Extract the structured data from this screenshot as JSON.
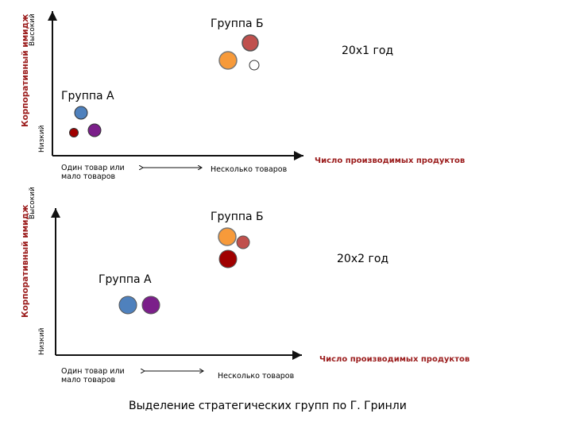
{
  "caption": "Выделение стратегических групп по Г. Гринли",
  "colors": {
    "axis": "#111111",
    "title_red": "#9b1c1c",
    "blue": "#4f81bd",
    "purple": "#7b1f8a",
    "dark_red": "#a00000",
    "orange": "#f79a3a",
    "salmon": "#c0504d",
    "light": "#ffffff"
  },
  "panels": [
    {
      "y_title": "Корпоративный имидж",
      "y_high": "Высокий",
      "y_low": "Низкий",
      "x_title": "Число производимых продуктов",
      "x_left": "Один товар или мало товаров",
      "x_right": "Несколько товаров",
      "year": "20х1 год",
      "group_a": "Группа А",
      "group_b": "Группа Б",
      "points": [
        {
          "name": "blue",
          "color": "#4f81bd",
          "group": "A"
        },
        {
          "name": "dark-red",
          "color": "#a00000",
          "group": "A"
        },
        {
          "name": "purple",
          "color": "#7b1f8a",
          "group": "A"
        },
        {
          "name": "salmon",
          "color": "#c0504d",
          "group": "B"
        },
        {
          "name": "orange",
          "color": "#f79a3a",
          "group": "B"
        },
        {
          "name": "white",
          "color": "#ffffff",
          "group": "B"
        }
      ]
    },
    {
      "y_title": "Корпоративный имидж",
      "y_high": "Высокий",
      "y_low": "Низкий",
      "x_title": "Число производимых продуктов",
      "x_left": "Один товар или мало товаров",
      "x_right": "Несколько товаров",
      "year": "20х2 год",
      "group_a": "Группа А",
      "group_b": "Группа Б",
      "points": [
        {
          "name": "orange",
          "color": "#f79a3a",
          "group": "B"
        },
        {
          "name": "salmon",
          "color": "#c0504d",
          "group": "B"
        },
        {
          "name": "dark-red",
          "color": "#a00000",
          "group": "B"
        },
        {
          "name": "blue",
          "color": "#4f81bd",
          "group": "A"
        },
        {
          "name": "purple",
          "color": "#7b1f8a",
          "group": "A"
        }
      ]
    }
  ]
}
